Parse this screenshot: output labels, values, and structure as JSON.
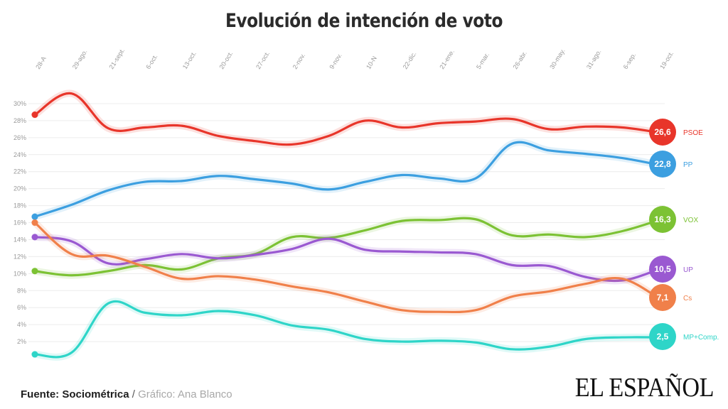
{
  "title": "Evolución de intención de voto",
  "source": {
    "label": "Fuente: Sociométrica",
    "separator": " / ",
    "credit": "Gráfico: Ana Blanco"
  },
  "logo": "EL ESPAÑOL",
  "chart_data": {
    "type": "line",
    "title": "Evolución de intención de voto",
    "x": [
      "28-A",
      "29-ago.",
      "21-sept.",
      "6-oct.",
      "13-oct.",
      "20-oct.",
      "27-oct.",
      "2-nov.",
      "9-nov.",
      "10-N",
      "22-dic.",
      "21-ene.",
      "5-mar.",
      "26-abr.",
      "30-may.",
      "31-ago.",
      "6-sep.",
      "19-oct."
    ],
    "y_ticks": [
      "2%",
      "4%",
      "6%",
      "8%",
      "10%",
      "12%",
      "14%",
      "16%",
      "18%",
      "20%",
      "22%",
      "24%",
      "26%",
      "28%",
      "30%"
    ],
    "ylim": [
      0,
      31
    ],
    "grid": true,
    "legend": "end-labels",
    "series": [
      {
        "name": "PSOE",
        "color": "#e8352a",
        "end_label": "26,6",
        "values": [
          28.7,
          31.2,
          27.1,
          27.2,
          27.4,
          26.2,
          25.6,
          25.2,
          26.2,
          28.0,
          27.2,
          27.7,
          27.9,
          28.2,
          27.0,
          27.3,
          27.2,
          26.6
        ]
      },
      {
        "name": "PP",
        "color": "#3c9fe0",
        "end_label": "22,8",
        "values": [
          16.7,
          18.1,
          19.8,
          20.8,
          20.9,
          21.5,
          21.1,
          20.6,
          19.9,
          20.8,
          21.6,
          21.2,
          21.2,
          25.3,
          24.5,
          24.1,
          23.6,
          22.8
        ]
      },
      {
        "name": "VOX",
        "color": "#7cc234",
        "end_label": "16,3",
        "values": [
          10.3,
          9.8,
          10.3,
          11.0,
          10.5,
          11.8,
          12.3,
          14.3,
          14.2,
          15.1,
          16.2,
          16.3,
          16.4,
          14.5,
          14.6,
          14.3,
          15.0,
          16.3
        ]
      },
      {
        "name": "UP",
        "color": "#9a59d1",
        "end_label": "10,5",
        "values": [
          14.3,
          13.8,
          11.2,
          11.7,
          12.3,
          11.8,
          12.2,
          12.9,
          14.1,
          12.8,
          12.6,
          12.5,
          12.3,
          11.0,
          10.9,
          9.6,
          9.2,
          10.5
        ]
      },
      {
        "name": "Cs",
        "color": "#f0804a",
        "end_label": "7,1",
        "values": [
          16.0,
          12.3,
          12.1,
          10.8,
          9.4,
          9.7,
          9.3,
          8.5,
          7.8,
          6.7,
          5.7,
          5.5,
          5.7,
          7.3,
          7.9,
          8.8,
          9.4,
          7.1
        ]
      },
      {
        "name": "MP+Comp.",
        "color": "#2ed5c8",
        "end_label": "2,5",
        "values": [
          0.5,
          0.7,
          6.5,
          5.4,
          5.1,
          5.6,
          5.1,
          3.9,
          3.4,
          2.3,
          2.0,
          2.1,
          1.9,
          1.1,
          1.4,
          2.3,
          2.5,
          2.5
        ]
      }
    ]
  }
}
